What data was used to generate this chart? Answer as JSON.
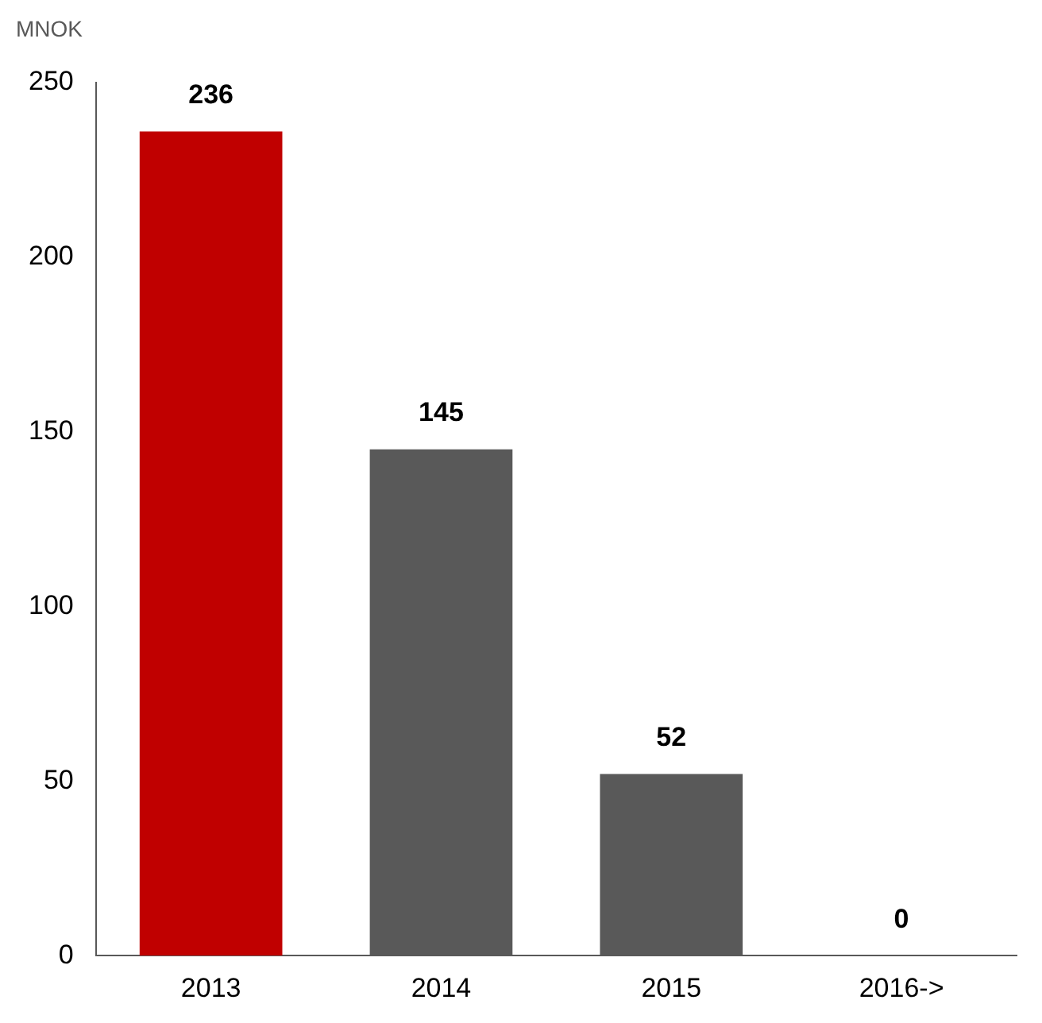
{
  "chart_data": {
    "type": "bar",
    "ylabel": "MNOK",
    "categories": [
      "2013",
      "2014",
      "2015",
      "2016->"
    ],
    "values": [
      236,
      145,
      52,
      0
    ],
    "colors": [
      "#c00000",
      "#595959",
      "#595959",
      "#595959"
    ],
    "ylim": [
      0,
      250
    ],
    "yticks": [
      0,
      50,
      100,
      150,
      200,
      250
    ],
    "grid": false,
    "legend": false,
    "data_labels": true
  }
}
